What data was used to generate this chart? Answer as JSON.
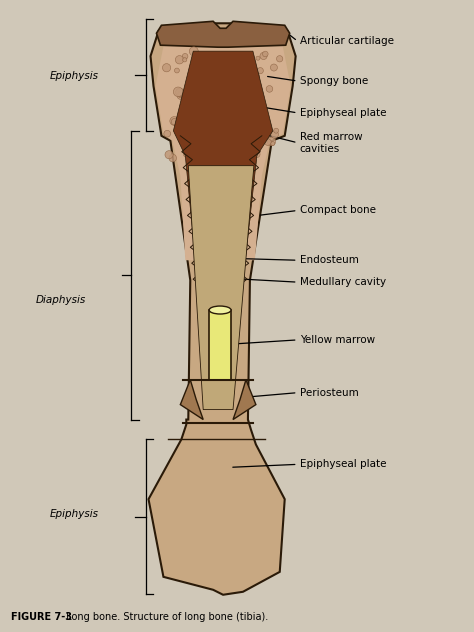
{
  "title_bold": "FIGURE 7-3",
  "title_rest": " Long bone. Structure of long bone (tibia).",
  "labels": {
    "articular_cartilage": "Articular cartilage",
    "spongy_bone": "Spongy bone",
    "epiphyseal_plate_top": "Epiphyseal plate",
    "red_marrow": "Red marrow\ncavities",
    "compact_bone": "Compact bone",
    "endosteum": "Endosteum",
    "medullary_cavity": "Medullary cavity",
    "yellow_marrow": "Yellow marrow",
    "periosteum": "Periosteum",
    "epiphyseal_plate_bot": "Epiphyseal plate",
    "epiphysis_top": "Epiphysis",
    "diaphysis": "Diaphysis",
    "epiphysis_bot": "Epiphysis"
  },
  "colors": {
    "bone_outer": "#c8a882",
    "spongy_fill": "#d4b090",
    "compact_outline": "#3a2010",
    "red_marrow_color": "#7a3a1a",
    "dark_marrow": "#5a2a10",
    "yellow_marrow_color": "#e8e878",
    "yellow_marrow_outline": "#c8c850",
    "cartilage_top": "#8a6040",
    "cartilage_fill": "#c0a070",
    "periosteum_color": "#a07850",
    "inner_cavity": "#c0a878",
    "figure_bg": "#c8c0b0",
    "page_bg": "#d0c8b8",
    "outline": "#2a1a08"
  },
  "font_sizes": {
    "label": 7.5,
    "side_label": 7.5,
    "title": 7.0
  }
}
